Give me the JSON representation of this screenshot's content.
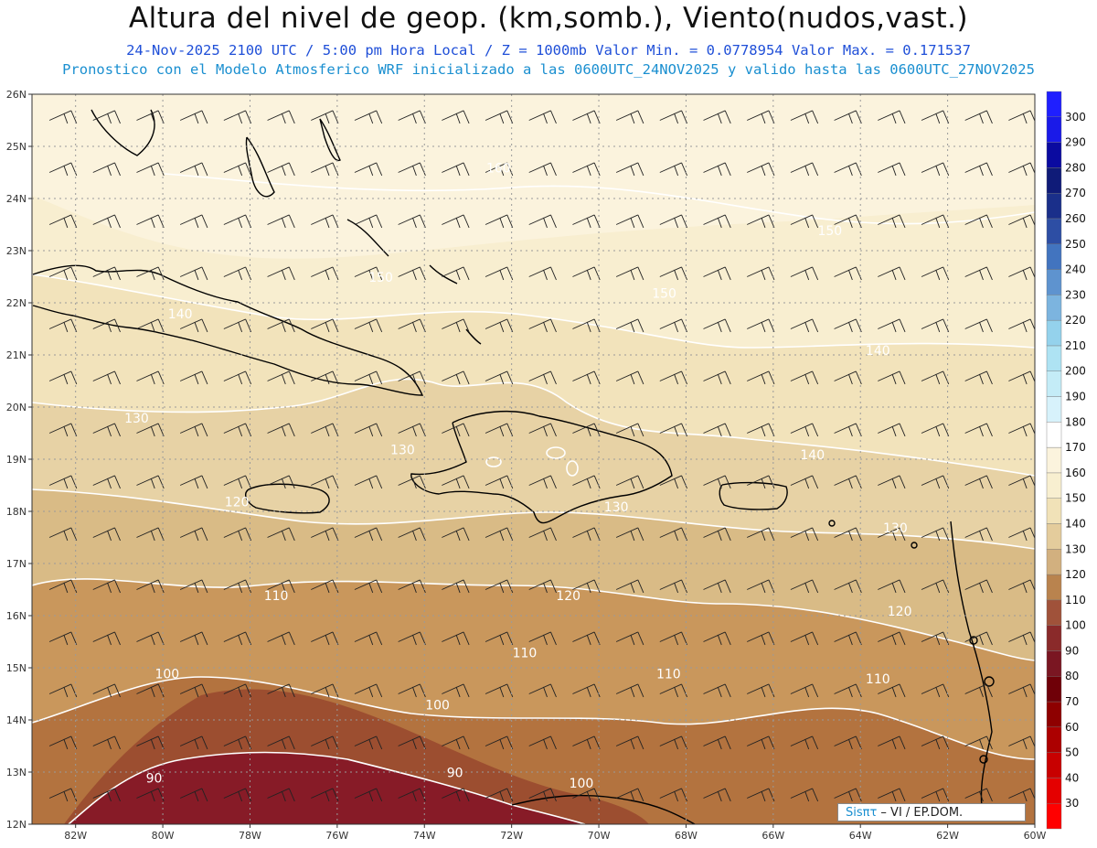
{
  "header": {
    "title": "Altura del nivel de geop. (km,somb.), Viento(nudos,vast.)",
    "subtitle_1": "24-Nov-2025  2100 UTC / 5:00 pm Hora Local / Z = 1000mb  Valor Min. = 0.0778954  Valor Max. = 0.171537",
    "subtitle_2": "Pronostico con el Modelo Atmosferico WRF inicializado a las 0600UTC_24NOV2025 y valido hasta las  0600UTC_27NOV2025"
  },
  "map": {
    "lon_range": [
      -83,
      -60
    ],
    "lat_range": [
      12,
      26
    ],
    "lon_ticks": [
      "82W",
      "80W",
      "78W",
      "76W",
      "74W",
      "72W",
      "70W",
      "68W",
      "66W",
      "64W",
      "62W",
      "60W"
    ],
    "lat_ticks": [
      "12N",
      "13N",
      "14N",
      "15N",
      "16N",
      "17N",
      "18N",
      "19N",
      "20N",
      "21N",
      "22N",
      "23N",
      "24N",
      "25N",
      "26N"
    ],
    "grid": "dotted",
    "contour_labels": [
      {
        "text": "90",
        "lon": -80.2,
        "lat": 12.8
      },
      {
        "text": "90",
        "lon": -73.3,
        "lat": 12.9
      },
      {
        "text": "100",
        "lon": -79.9,
        "lat": 14.8
      },
      {
        "text": "100",
        "lon": -73.7,
        "lat": 14.2
      },
      {
        "text": "100",
        "lon": -70.4,
        "lat": 12.7
      },
      {
        "text": "110",
        "lon": -77.4,
        "lat": 16.3
      },
      {
        "text": "110",
        "lon": -71.7,
        "lat": 15.2
      },
      {
        "text": "110",
        "lon": -68.4,
        "lat": 14.8
      },
      {
        "text": "110",
        "lon": -63.6,
        "lat": 14.7
      },
      {
        "text": "120",
        "lon": -78.3,
        "lat": 18.1
      },
      {
        "text": "120",
        "lon": -70.7,
        "lat": 16.3
      },
      {
        "text": "120",
        "lon": -63.1,
        "lat": 16.0
      },
      {
        "text": "130",
        "lon": -80.6,
        "lat": 19.7
      },
      {
        "text": "130",
        "lon": -74.5,
        "lat": 19.1
      },
      {
        "text": "130",
        "lon": -69.6,
        "lat": 18.0
      },
      {
        "text": "130",
        "lon": -63.2,
        "lat": 17.6
      },
      {
        "text": "140",
        "lon": -79.6,
        "lat": 21.7
      },
      {
        "text": "140",
        "lon": -65.1,
        "lat": 19.0
      },
      {
        "text": "140",
        "lon": -63.6,
        "lat": 21.0
      },
      {
        "text": "150",
        "lon": -75.0,
        "lat": 22.4
      },
      {
        "text": "150",
        "lon": -68.5,
        "lat": 22.1
      },
      {
        "text": "150",
        "lon": -64.7,
        "lat": 23.3
      },
      {
        "text": "160",
        "lon": -72.3,
        "lat": 24.5
      }
    ]
  },
  "colorbar": {
    "levels": [
      "30",
      "40",
      "50",
      "60",
      "70",
      "80",
      "90",
      "100",
      "110",
      "120",
      "130",
      "140",
      "150",
      "160",
      "170",
      "180",
      "190",
      "200",
      "210",
      "220",
      "230",
      "240",
      "250",
      "260",
      "270",
      "280",
      "290",
      "300"
    ],
    "colors": [
      "#ff0000",
      "#e40000",
      "#c80000",
      "#ac0000",
      "#8e0000",
      "#6f0008",
      "#7a1622",
      "#8a2a2a",
      "#a0523a",
      "#b9834e",
      "#d2b07f",
      "#e4cc9c",
      "#f1e2b8",
      "#f8efd0",
      "#fbf3dd",
      "#ffffff",
      "#d7f2fb",
      "#c4ecf7",
      "#aee3f3",
      "#94d2ec",
      "#7cb4df",
      "#5e93cf",
      "#4274bf",
      "#2d4ea4",
      "#1a2f8a",
      "#0f1b78",
      "#0a0aa0",
      "#1a1ae8",
      "#1f1fff"
    ]
  },
  "credit": {
    "brand": "Sisπτ",
    "text": " –       VI   /  EP.DOM."
  }
}
